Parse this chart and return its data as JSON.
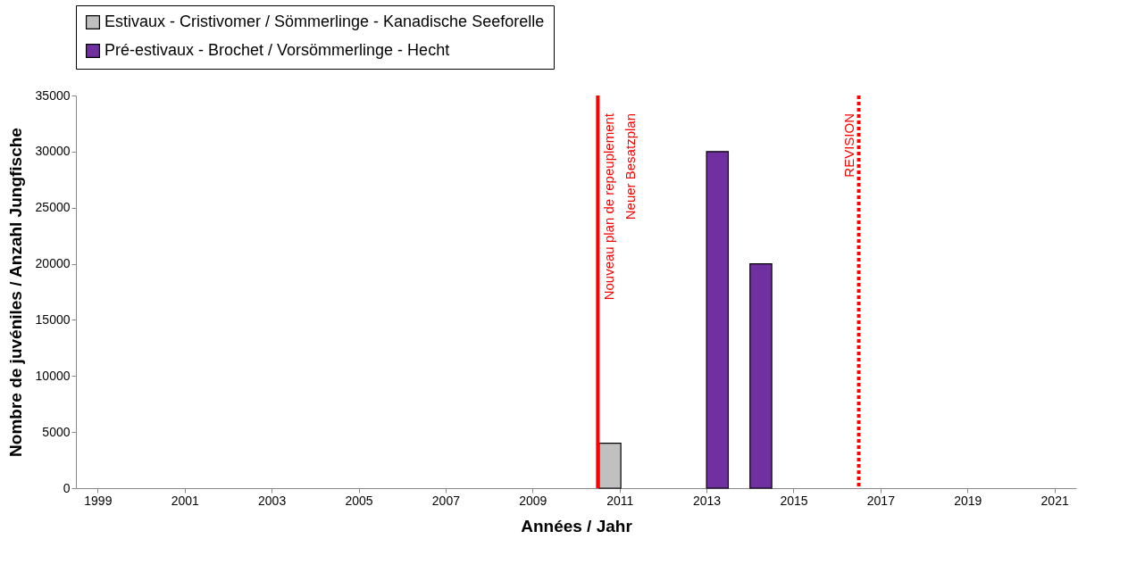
{
  "chart_data": {
    "type": "bar",
    "xlabel": "Années / Jahr",
    "ylabel": "Nombre de juvéniles / Anzahl Jungfische",
    "xlim": [
      1998.5,
      2021.5
    ],
    "xticks": [
      1999,
      2001,
      2003,
      2005,
      2007,
      2009,
      2011,
      2013,
      2015,
      2017,
      2019,
      2021
    ],
    "ylim": [
      0,
      35000
    ],
    "yticks": [
      0,
      5000,
      10000,
      15000,
      20000,
      25000,
      30000,
      35000
    ],
    "series": [
      {
        "name": "Estivaux - Cristivomer / Sömmerlinge - Kanadische Seeforelle",
        "color": "#c0c0c0",
        "x": [
          2011
        ],
        "values": [
          4000
        ]
      },
      {
        "name": "Pré-estivaux - Brochet / Vorsömmerlinge - Hecht",
        "color": "#7030a0",
        "x": [
          2013,
          2014
        ],
        "values": [
          30000,
          20000
        ]
      }
    ],
    "ref_lines": [
      {
        "axis": "x",
        "value": 2010.5,
        "label": "Nouveau plan de repeuplement\nNeuer Besatzplan",
        "color": "#ff0000",
        "line_style": "solid"
      },
      {
        "axis": "x",
        "value": 2016.5,
        "label": "REVISION",
        "color": "#ff0000",
        "line_style": "dotted"
      }
    ],
    "grid": false,
    "legend": "top"
  }
}
